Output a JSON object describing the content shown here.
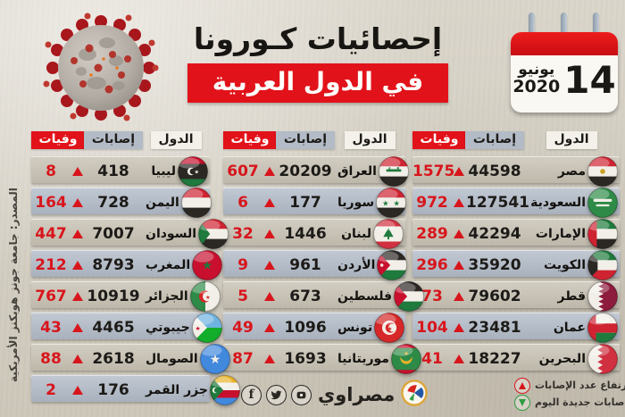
{
  "header": {
    "title_line1": "إحصائيات كـورونا",
    "title_line2": "في الدول العربية",
    "calendar": {
      "day": "14",
      "month": "يونيو",
      "year": "2020"
    }
  },
  "columns": {
    "country": "الدول",
    "cases": "إصابات",
    "deaths": "وفيات"
  },
  "groups": [
    {
      "position": "right",
      "rows": [
        {
          "country": "مصر",
          "flag": "egypt",
          "cases": "44598",
          "deaths": "1575",
          "trend": "up"
        },
        {
          "country": "السعودية",
          "flag": "saudi-arabia",
          "cases": "127541",
          "deaths": "972",
          "trend": "up"
        },
        {
          "country": "الإمارات",
          "flag": "uae",
          "cases": "42294",
          "deaths": "289",
          "trend": "up"
        },
        {
          "country": "الكويت",
          "flag": "kuwait",
          "cases": "35920",
          "deaths": "296",
          "trend": "up"
        },
        {
          "country": "قطر",
          "flag": "qatar",
          "cases": "79602",
          "deaths": "73",
          "trend": "up"
        },
        {
          "country": "عمان",
          "flag": "oman",
          "cases": "23481",
          "deaths": "104",
          "trend": "up"
        },
        {
          "country": "البحرين",
          "flag": "bahrain",
          "cases": "18227",
          "deaths": "41",
          "trend": "up"
        }
      ]
    },
    {
      "position": "middle",
      "rows": [
        {
          "country": "العراق",
          "flag": "iraq",
          "cases": "20209",
          "deaths": "607",
          "trend": "up"
        },
        {
          "country": "سوريا",
          "flag": "syria",
          "cases": "177",
          "deaths": "6",
          "trend": "up"
        },
        {
          "country": "لبنان",
          "flag": "lebanon",
          "cases": "1446",
          "deaths": "32",
          "trend": "up"
        },
        {
          "country": "الأردن",
          "flag": "jordan",
          "cases": "961",
          "deaths": "9",
          "trend": "up"
        },
        {
          "country": "فلسطين",
          "flag": "palestine",
          "cases": "673",
          "deaths": "5",
          "trend": "up"
        },
        {
          "country": "تونس",
          "flag": "tunisia",
          "cases": "1096",
          "deaths": "49",
          "trend": "up"
        },
        {
          "country": "موريتانيا",
          "flag": "mauritania",
          "cases": "1693",
          "deaths": "87",
          "trend": "up"
        }
      ]
    },
    {
      "position": "left",
      "rows": [
        {
          "country": "ليبيا",
          "flag": "libya",
          "cases": "418",
          "deaths": "8",
          "trend": "up"
        },
        {
          "country": "اليمن",
          "flag": "yemen",
          "cases": "728",
          "deaths": "164",
          "trend": "up"
        },
        {
          "country": "السودان",
          "flag": "sudan",
          "cases": "7007",
          "deaths": "447",
          "trend": "up"
        },
        {
          "country": "المغرب",
          "flag": "morocco",
          "cases": "8793",
          "deaths": "212",
          "trend": "up"
        },
        {
          "country": "الجزائر",
          "flag": "algeria",
          "cases": "10919",
          "deaths": "767",
          "trend": "up"
        },
        {
          "country": "جيبوتي",
          "flag": "djibouti",
          "cases": "4465",
          "deaths": "43",
          "trend": "up"
        },
        {
          "country": "الصومال",
          "flag": "somalia",
          "cases": "2618",
          "deaths": "88",
          "trend": "up"
        },
        {
          "country": "جزر القمر",
          "flag": "comoros",
          "cases": "176",
          "deaths": "2",
          "trend": "up"
        }
      ]
    }
  ],
  "source_note": "المصدر: جامعة جونز هوبكنز الأمريكية",
  "footer": {
    "brand": "مصراوي",
    "social": [
      "youtube",
      "twitter",
      "facebook"
    ],
    "legend": [
      {
        "trend": "up",
        "label": "إرتفاع عدد الإصابات"
      },
      {
        "trend": "down",
        "label": "لم تسجل إصابات جديدة اليوم"
      }
    ]
  },
  "colors": {
    "accent_red": "#e2121a",
    "deaths_red": "#d8151c",
    "legend_green": "#2e9e41",
    "row_warm": "#c8c3b6",
    "row_cool": "#b4bdc8",
    "background": "#d4cfc3"
  },
  "chart_data": {
    "type": "table",
    "title": "إحصائيات كورونا في الدول العربية",
    "date": "14 يونيو 2020",
    "columns": [
      "الدول",
      "إصابات",
      "وفيات"
    ],
    "rows": [
      [
        "مصر",
        44598,
        1575
      ],
      [
        "السعودية",
        127541,
        972
      ],
      [
        "الإمارات",
        42294,
        289
      ],
      [
        "الكويت",
        35920,
        296
      ],
      [
        "قطر",
        79602,
        73
      ],
      [
        "عمان",
        23481,
        104
      ],
      [
        "البحرين",
        18227,
        41
      ],
      [
        "العراق",
        20209,
        607
      ],
      [
        "سوريا",
        177,
        6
      ],
      [
        "لبنان",
        1446,
        32
      ],
      [
        "الأردن",
        961,
        9
      ],
      [
        "فلسطين",
        673,
        5
      ],
      [
        "تونس",
        1096,
        49
      ],
      [
        "موريتانيا",
        1693,
        87
      ],
      [
        "ليبيا",
        418,
        8
      ],
      [
        "اليمن",
        728,
        164
      ],
      [
        "السودان",
        7007,
        447
      ],
      [
        "المغرب",
        8793,
        212
      ],
      [
        "الجزائر",
        10919,
        767
      ],
      [
        "جيبوتي",
        4465,
        43
      ],
      [
        "الصومال",
        2618,
        88
      ],
      [
        "جزر القمر",
        176,
        2
      ]
    ],
    "source": "المصدر: جامعة جونز هوبكنز الأمريكية"
  }
}
